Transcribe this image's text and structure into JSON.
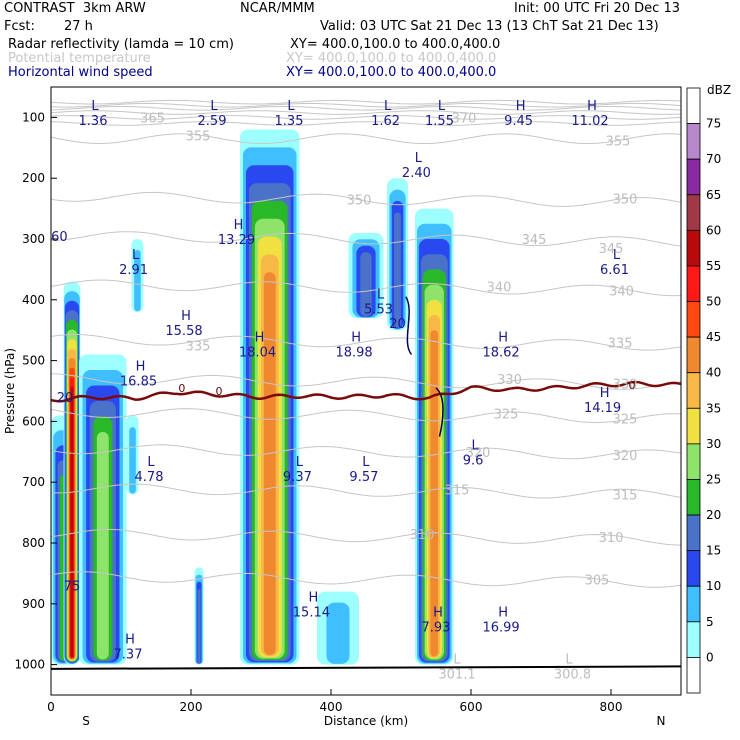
{
  "header": {
    "title_left": "CONTRAST  3km ARW",
    "title_center": "NCAR/MMM",
    "init": "Init: 00 UTC Fri 20 Dec 13",
    "fcst_label": "Fcst:",
    "fcst_value": "27 h",
    "valid": "Valid: 03 UTC Sat 21 Dec 13 (13 ChT Sat 21 Dec 13)",
    "fields": [
      {
        "name": "Radar reflectivity (lamda = 10 cm)",
        "xy": "XY= 400.0,100.0 to 400.0,400.0",
        "color": "#000000"
      },
      {
        "name": "Potential temperature",
        "xy": "XY= 400.0,100.0 to 400.0,400.0",
        "color": "#c8c8c8"
      },
      {
        "name": "Horizontal wind speed",
        "xy": "XY= 400.0,100.0 to 400.0,400.0",
        "color": "#00008b"
      }
    ]
  },
  "chart_data": {
    "type": "heatmap",
    "xlabel": "Distance (km)",
    "ylabel": "Pressure (hPa)",
    "xlim": [
      0,
      900
    ],
    "ylim": [
      1050,
      50
    ],
    "x_ticks": [
      "0",
      "200",
      "400",
      "600",
      "800"
    ],
    "y_ticks": [
      "100",
      "200",
      "300",
      "400",
      "500",
      "600",
      "700",
      "800",
      "900",
      "1000"
    ],
    "x_end_labels": {
      "left": "S",
      "right": "N"
    },
    "colorbar": {
      "unit": "dBZ",
      "levels": [
        "0",
        "5",
        "10",
        "15",
        "20",
        "25",
        "30",
        "35",
        "40",
        "45",
        "50",
        "55",
        "60",
        "65",
        "70",
        "75"
      ],
      "colors": [
        "#ffffff",
        "#9effff",
        "#3fbfff",
        "#2a48f0",
        "#4a72c8",
        "#28b828",
        "#8ee46a",
        "#f0e040",
        "#f8b848",
        "#f08830",
        "#ff4810",
        "#ff1818",
        "#b80a0a",
        "#a03848",
        "#8a2aa0",
        "#b888cc"
      ]
    },
    "reflectivity_cells": [
      {
        "x": [
          0,
          35
        ],
        "p": [
          1000,
          590
        ],
        "max_dbz": 25
      },
      {
        "x": [
          18,
          42
        ],
        "p": [
          1000,
          370
        ],
        "max_dbz": 60
      },
      {
        "x": [
          40,
          108
        ],
        "p": [
          1000,
          490
        ],
        "max_dbz": 30
      },
      {
        "x": [
          108,
          125
        ],
        "p": [
          720,
          590
        ],
        "max_dbz": 10
      },
      {
        "x": [
          115,
          132
        ],
        "p": [
          420,
          300
        ],
        "max_dbz": 10
      },
      {
        "x": [
          205,
          218
        ],
        "p": [
          1000,
          840
        ],
        "max_dbz": 20
      },
      {
        "x": [
          270,
          355
        ],
        "p": [
          1000,
          120
        ],
        "max_dbz": 45
      },
      {
        "x": [
          380,
          440
        ],
        "p": [
          1000,
          880
        ],
        "max_dbz": 10
      },
      {
        "x": [
          425,
          475
        ],
        "p": [
          430,
          290
        ],
        "max_dbz": 20
      },
      {
        "x": [
          480,
          510
        ],
        "p": [
          450,
          200
        ],
        "max_dbz": 20
      },
      {
        "x": [
          520,
          575
        ],
        "p": [
          1000,
          250
        ],
        "max_dbz": 45
      }
    ],
    "theta_labels": [
      {
        "text": "365",
        "x": 145,
        "p": 100
      },
      {
        "text": "355",
        "x": 210,
        "p": 130
      },
      {
        "text": "370",
        "x": 590,
        "p": 100
      },
      {
        "text": "355",
        "x": 810,
        "p": 138
      },
      {
        "text": "350",
        "x": 440,
        "p": 235
      },
      {
        "text": "350",
        "x": 820,
        "p": 233
      },
      {
        "text": "345",
        "x": 690,
        "p": 300
      },
      {
        "text": "345",
        "x": 800,
        "p": 315
      },
      {
        "text": "340",
        "x": 640,
        "p": 378
      },
      {
        "text": "340",
        "x": 815,
        "p": 385
      },
      {
        "text": "335",
        "x": 210,
        "p": 475
      },
      {
        "text": "335",
        "x": 813,
        "p": 470
      },
      {
        "text": "330",
        "x": 655,
        "p": 530
      },
      {
        "text": "330",
        "x": 820,
        "p": 538
      },
      {
        "text": "325",
        "x": 650,
        "p": 587
      },
      {
        "text": "325",
        "x": 820,
        "p": 595
      },
      {
        "text": "320",
        "x": 610,
        "p": 650
      },
      {
        "text": "320",
        "x": 820,
        "p": 655
      },
      {
        "text": "315",
        "x": 580,
        "p": 712
      },
      {
        "text": "315",
        "x": 820,
        "p": 720
      },
      {
        "text": "310",
        "x": 530,
        "p": 785
      },
      {
        "text": "310",
        "x": 800,
        "p": 790
      },
      {
        "text": "305",
        "x": 780,
        "p": 860
      },
      {
        "text": "301.1",
        "x": 580,
        "p": 1015
      },
      {
        "text": "300.8",
        "x": 745,
        "p": 1015
      }
    ],
    "theta_lows": [
      {
        "text": "L",
        "x": 580,
        "p": 990
      },
      {
        "text": "L",
        "x": 740,
        "p": 990
      }
    ],
    "zero_labels": [
      {
        "text": "0",
        "x": 187,
        "p": 545
      },
      {
        "text": "0",
        "x": 240,
        "p": 550
      },
      {
        "text": "0",
        "x": 830,
        "p": 540
      }
    ],
    "wind_extrema": [
      {
        "type": "L",
        "value": "1.36",
        "x": 60,
        "p": 80
      },
      {
        "type": "L",
        "value": "2.59",
        "x": 230,
        "p": 80
      },
      {
        "type": "L",
        "value": "1.35",
        "x": 340,
        "p": 80
      },
      {
        "type": "L",
        "value": "1.62",
        "x": 478,
        "p": 80
      },
      {
        "type": "L",
        "value": "1.55",
        "x": 555,
        "p": 80
      },
      {
        "type": "H",
        "value": "9.45",
        "x": 668,
        "p": 80
      },
      {
        "type": "H",
        "value": "11.02",
        "x": 770,
        "p": 80
      },
      {
        "type": "L",
        "value": "2.40",
        "x": 522,
        "p": 165
      },
      {
        "type": "H",
        "value": "13.29",
        "x": 265,
        "p": 275
      },
      {
        "type": "L",
        "value": "2.91",
        "x": 118,
        "p": 325
      },
      {
        "type": "L",
        "value": "5.53",
        "x": 468,
        "p": 390
      },
      {
        "type": "L",
        "value": "6.61",
        "x": 805,
        "p": 325
      },
      {
        "type": "H",
        "value": "15.58",
        "x": 190,
        "p": 425
      },
      {
        "type": "H",
        "value": "18.04",
        "x": 295,
        "p": 460
      },
      {
        "type": "H",
        "value": "18.98",
        "x": 433,
        "p": 460
      },
      {
        "type": "H",
        "value": "18.62",
        "x": 643,
        "p": 460
      },
      {
        "type": "H",
        "value": "16.85",
        "x": 125,
        "p": 508
      },
      {
        "type": "H",
        "value": "14.19",
        "x": 788,
        "p": 552
      },
      {
        "type": "L",
        "value": "9.6",
        "x": 603,
        "p": 638
      },
      {
        "type": "L",
        "value": "4.78",
        "x": 140,
        "p": 665
      },
      {
        "type": "L",
        "value": "9.37",
        "x": 352,
        "p": 665
      },
      {
        "type": "L",
        "value": "9.57",
        "x": 447,
        "p": 665
      },
      {
        "type": "H",
        "value": "15.14",
        "x": 372,
        "p": 888
      },
      {
        "type": "H",
        "value": "7.93",
        "x": 550,
        "p": 913
      },
      {
        "type": "H",
        "value": "16.99",
        "x": 643,
        "p": 913
      },
      {
        "type": "H",
        "value": "7.37",
        "x": 110,
        "p": 957
      }
    ],
    "edge_labels": [
      {
        "text": "60",
        "x": 12,
        "p": 295
      },
      {
        "text": "75",
        "x": 30,
        "p": 870
      },
      {
        "text": "20",
        "x": 495,
        "p": 438
      },
      {
        "text": "20",
        "x": 20,
        "p": 560
      }
    ],
    "freezing_level_p": [
      565,
      560,
      562,
      552,
      556,
      560,
      558,
      560,
      557,
      562,
      545,
      548,
      545,
      540,
      538,
      540
    ]
  }
}
